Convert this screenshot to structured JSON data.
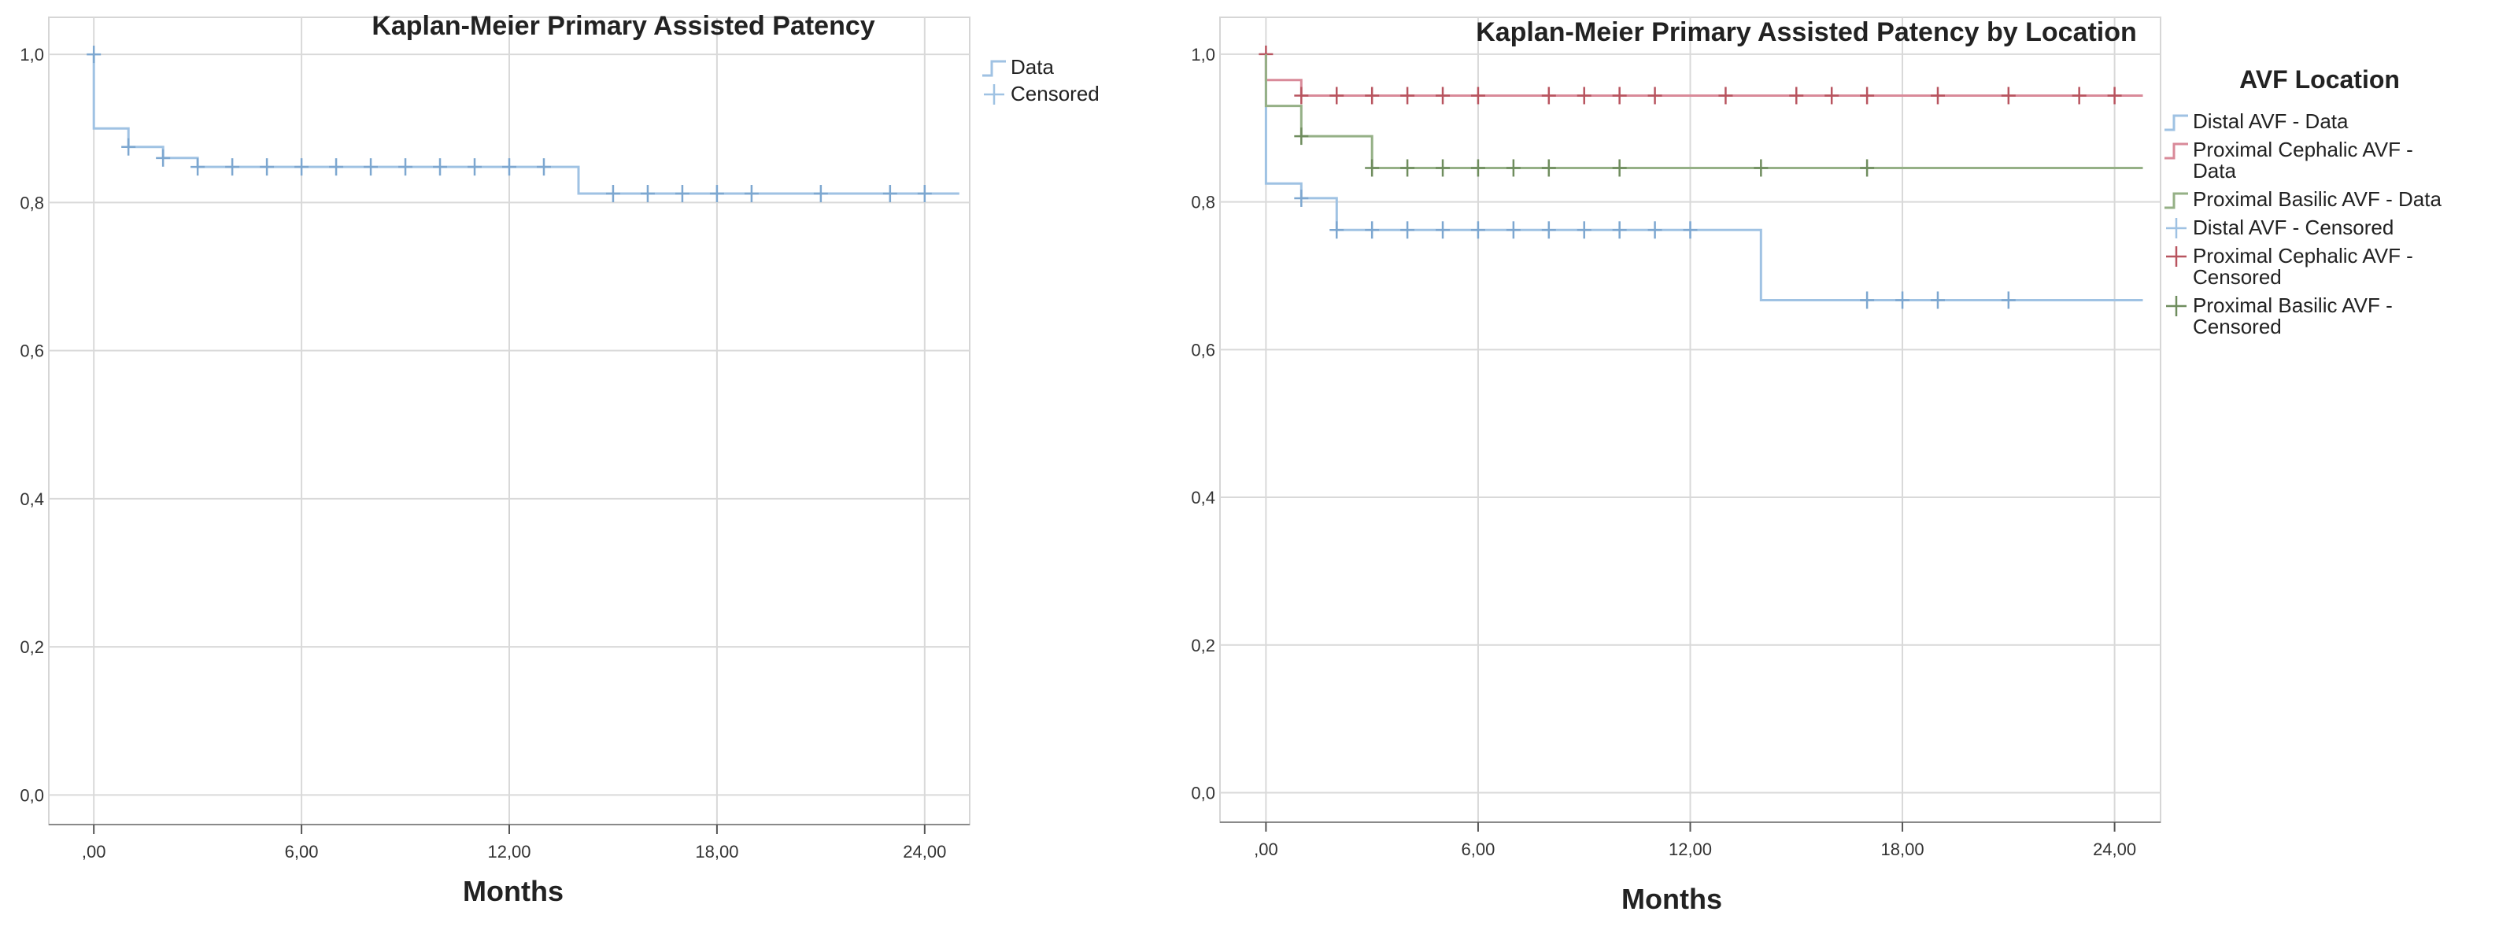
{
  "chart_data": [
    {
      "type": "line",
      "title": "Kaplan-Meier Primary Assisted Patency",
      "xlabel": "Months",
      "ylabel": "",
      "xlim": [
        -1.3,
        25.3
      ],
      "ylim": [
        -0.04,
        1.05
      ],
      "xticks": [
        0,
        6,
        12,
        18,
        24
      ],
      "xtick_labels": [
        ",00",
        "6,00",
        "12,00",
        "18,00",
        "24,00"
      ],
      "yticks": [
        0,
        0.2,
        0.4,
        0.6,
        0.8,
        1.0
      ],
      "ytick_labels": [
        "0,0",
        "0,2",
        "0,4",
        "0,6",
        "0,8",
        "1,0"
      ],
      "grid": true,
      "legend_position": "top-right",
      "legend_title": "",
      "legend": [
        {
          "label": "Data",
          "kind": "step"
        },
        {
          "label": "Censored",
          "kind": "cross"
        }
      ],
      "series": [
        {
          "color": "#9fc2e3",
          "steps": [
            [
              0,
              1.0
            ],
            [
              0,
              0.9
            ],
            [
              1,
              0.9
            ],
            [
              1,
              0.875
            ],
            [
              2,
              0.875
            ],
            [
              2,
              0.86
            ],
            [
              3,
              0.86
            ],
            [
              3,
              0.848
            ],
            [
              14,
              0.848
            ],
            [
              14,
              0.812
            ],
            [
              25,
              0.812
            ]
          ],
          "censored": [
            [
              0,
              1.0
            ],
            [
              1,
              0.875
            ],
            [
              2,
              0.86
            ],
            [
              3,
              0.848
            ],
            [
              4,
              0.848
            ],
            [
              5,
              0.848
            ],
            [
              6,
              0.848
            ],
            [
              7,
              0.848
            ],
            [
              8,
              0.848
            ],
            [
              9,
              0.848
            ],
            [
              10,
              0.848
            ],
            [
              11,
              0.848
            ],
            [
              12,
              0.848
            ],
            [
              13,
              0.848
            ],
            [
              15,
              0.812
            ],
            [
              16,
              0.812
            ],
            [
              17,
              0.812
            ],
            [
              18,
              0.812
            ],
            [
              19,
              0.812
            ],
            [
              21,
              0.812
            ],
            [
              23,
              0.812
            ],
            [
              24,
              0.812
            ]
          ]
        }
      ]
    },
    {
      "type": "line",
      "title": "Kaplan-Meier Primary Assisted Patency by Location",
      "xlabel": "Months",
      "ylabel": "",
      "xlim": [
        -1.3,
        25.3
      ],
      "ylim": [
        -0.04,
        1.05
      ],
      "xticks": [
        0,
        6,
        12,
        18,
        24
      ],
      "xtick_labels": [
        ",00",
        "6,00",
        "12,00",
        "18,00",
        "24,00"
      ],
      "yticks": [
        0,
        0.2,
        0.4,
        0.6,
        0.8,
        1.0
      ],
      "ytick_labels": [
        "0,0",
        "0,2",
        "0,4",
        "0,6",
        "0,8",
        "1,0"
      ],
      "grid": true,
      "legend_position": "right",
      "legend_title": "AVF Location",
      "legend": [
        {
          "label": "Distal AVF - Data",
          "kind": "step",
          "color": "#9fc2e3"
        },
        {
          "label": "Proximal Cephalic AVF -\nData",
          "kind": "step",
          "color": "#d98a99"
        },
        {
          "label": "Proximal Basilic AVF - Data",
          "kind": "step",
          "color": "#95b086"
        },
        {
          "label": "Distal AVF - Censored",
          "kind": "cross",
          "color": "#9fc2e3"
        },
        {
          "label": "Proximal Cephalic AVF -\nCensored",
          "kind": "cross",
          "color": "#b8545f"
        },
        {
          "label": "Proximal Basilic AVF -\nCensored",
          "kind": "cross",
          "color": "#6f8d5e"
        }
      ],
      "series": [
        {
          "color": "#9fc2e3",
          "steps": [
            [
              0,
              1.0
            ],
            [
              0,
              0.825
            ],
            [
              1,
              0.825
            ],
            [
              1,
              0.805
            ],
            [
              2,
              0.805
            ],
            [
              2,
              0.762
            ],
            [
              14,
              0.762
            ],
            [
              14,
              0.667
            ],
            [
              24.8,
              0.667
            ]
          ],
          "censored": [
            [
              1,
              0.805
            ],
            [
              2,
              0.762
            ],
            [
              3,
              0.762
            ],
            [
              4,
              0.762
            ],
            [
              5,
              0.762
            ],
            [
              6,
              0.762
            ],
            [
              7,
              0.762
            ],
            [
              8,
              0.762
            ],
            [
              9,
              0.762
            ],
            [
              10,
              0.762
            ],
            [
              11,
              0.762
            ],
            [
              12,
              0.762
            ],
            [
              17,
              0.667
            ],
            [
              18,
              0.667
            ],
            [
              19,
              0.667
            ],
            [
              21,
              0.667
            ]
          ]
        },
        {
          "color": "#d98a99",
          "steps": [
            [
              0,
              1.0
            ],
            [
              0,
              0.965
            ],
            [
              1,
              0.965
            ],
            [
              1,
              0.944
            ],
            [
              24.8,
              0.944
            ]
          ],
          "censored": [
            [
              0,
              1.0
            ],
            [
              1,
              0.944
            ],
            [
              2,
              0.944
            ],
            [
              3,
              0.944
            ],
            [
              4,
              0.944
            ],
            [
              5,
              0.944
            ],
            [
              6,
              0.944
            ],
            [
              8,
              0.944
            ],
            [
              9,
              0.944
            ],
            [
              10,
              0.944
            ],
            [
              11,
              0.944
            ],
            [
              13,
              0.944
            ],
            [
              15,
              0.944
            ],
            [
              16,
              0.944
            ],
            [
              17,
              0.944
            ],
            [
              19,
              0.944
            ],
            [
              21,
              0.944
            ],
            [
              23,
              0.944
            ],
            [
              24,
              0.944
            ]
          ]
        },
        {
          "color": "#95b086",
          "steps": [
            [
              0,
              1.0
            ],
            [
              0,
              0.93
            ],
            [
              1,
              0.93
            ],
            [
              1,
              0.889
            ],
            [
              3,
              0.889
            ],
            [
              3,
              0.846
            ],
            [
              24.8,
              0.846
            ]
          ],
          "censored": [
            [
              1,
              0.889
            ],
            [
              3,
              0.846
            ],
            [
              4,
              0.846
            ],
            [
              5,
              0.846
            ],
            [
              6,
              0.846
            ],
            [
              7,
              0.846
            ],
            [
              8,
              0.846
            ],
            [
              10,
              0.846
            ],
            [
              14,
              0.846
            ],
            [
              17,
              0.846
            ]
          ]
        }
      ]
    }
  ]
}
